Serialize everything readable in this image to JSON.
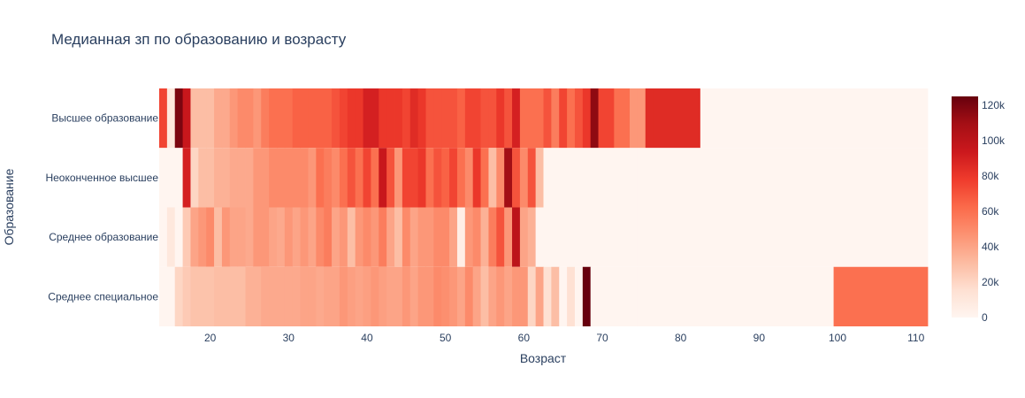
{
  "chart_data": {
    "type": "heatmap",
    "title": "Медианная зп по образованию и возрасту",
    "xlabel": "Возраст",
    "ylabel": "Образование",
    "xlim": [
      13.5,
      111.5
    ],
    "x_ticks": [
      "20",
      "30",
      "40",
      "50",
      "60",
      "70",
      "80",
      "90",
      "100",
      "110"
    ],
    "colorbar": {
      "colorscale": "Reds",
      "range": [
        0,
        125000
      ],
      "tick_values": [
        0,
        20000,
        40000,
        60000,
        80000,
        100000,
        120000
      ],
      "tick_labels": [
        "0",
        "20k",
        "40k",
        "60k",
        "80k",
        "100k",
        "120k"
      ]
    },
    "colors": {
      "scale": [
        "#fff5f0",
        "#fee0d2",
        "#fcbba1",
        "#fc9272",
        "#fb6a4a",
        "#ef3b2c",
        "#cb181d",
        "#a50f15",
        "#67000d"
      ]
    },
    "x": [
      14,
      15,
      16,
      17,
      18,
      19,
      20,
      21,
      22,
      23,
      24,
      25,
      26,
      27,
      28,
      29,
      30,
      31,
      32,
      33,
      34,
      35,
      36,
      37,
      38,
      39,
      40,
      41,
      42,
      43,
      44,
      45,
      46,
      47,
      48,
      49,
      50,
      51,
      52,
      53,
      54,
      55,
      56,
      57,
      58,
      59,
      60,
      61,
      62,
      63,
      64,
      65,
      66,
      67,
      68,
      69,
      70,
      71,
      72,
      73,
      74,
      75,
      76,
      77,
      88,
      111
    ],
    "categories": [
      "Высшее образование",
      "Неоконченное высшее",
      "Среднее образование",
      "Среднее специальное"
    ],
    "series": [
      {
        "name": "Высшее образование",
        "values": [
          75000,
          10000,
          120000,
          95000,
          30000,
          30000,
          30000,
          38000,
          38000,
          45000,
          50000,
          50000,
          45000,
          55000,
          60000,
          60000,
          60000,
          65000,
          65000,
          65000,
          65000,
          65000,
          70000,
          75000,
          80000,
          80000,
          90000,
          90000,
          80000,
          80000,
          80000,
          75000,
          85000,
          80000,
          70000,
          70000,
          70000,
          70000,
          65000,
          75000,
          75000,
          70000,
          70000,
          80000,
          70000,
          90000,
          60000,
          60000,
          60000,
          70000,
          55000,
          75000,
          60000,
          70000,
          80000,
          115000,
          75000,
          75000,
          60000,
          60000,
          45000,
          45000,
          85000,
          85000,
          0,
          0
        ]
      },
      {
        "name": "Неоконченное высшее",
        "values": [
          0,
          0,
          0,
          90000,
          20000,
          30000,
          30000,
          35000,
          35000,
          38000,
          38000,
          38000,
          45000,
          45000,
          50000,
          50000,
          50000,
          50000,
          50000,
          45000,
          60000,
          55000,
          50000,
          60000,
          70000,
          60000,
          75000,
          60000,
          95000,
          70000,
          45000,
          75000,
          75000,
          80000,
          60000,
          70000,
          65000,
          75000,
          60000,
          50000,
          80000,
          60000,
          30000,
          50000,
          110000,
          70000,
          50000,
          70000,
          30000,
          0,
          0,
          0,
          0,
          0,
          0,
          0,
          0,
          0,
          0,
          0,
          0,
          0,
          0,
          0,
          0,
          0
        ]
      },
      {
        "name": "Среднее образование",
        "values": [
          0,
          10000,
          0,
          25000,
          40000,
          45000,
          50000,
          30000,
          45000,
          40000,
          40000,
          38000,
          45000,
          45000,
          40000,
          38000,
          45000,
          40000,
          45000,
          40000,
          50000,
          55000,
          40000,
          45000,
          30000,
          45000,
          50000,
          45000,
          55000,
          40000,
          30000,
          50000,
          40000,
          45000,
          45000,
          50000,
          50000,
          40000,
          5000,
          45000,
          50000,
          35000,
          55000,
          70000,
          45000,
          100000,
          40000,
          35000,
          0,
          0,
          0,
          0,
          0,
          0,
          0,
          0,
          0,
          0,
          0,
          0,
          0,
          0,
          0,
          0,
          0,
          0
        ]
      },
      {
        "name": "Среднее специальное",
        "values": [
          0,
          0,
          20000,
          25000,
          28000,
          28000,
          28000,
          30000,
          30000,
          30000,
          30000,
          35000,
          35000,
          38000,
          38000,
          38000,
          38000,
          38000,
          40000,
          40000,
          38000,
          40000,
          40000,
          45000,
          42000,
          40000,
          42000,
          45000,
          42000,
          40000,
          40000,
          45000,
          40000,
          45000,
          45000,
          50000,
          48000,
          45000,
          40000,
          50000,
          40000,
          30000,
          40000,
          45000,
          40000,
          45000,
          45000,
          20000,
          40000,
          15000,
          30000,
          0,
          15000,
          0,
          125000,
          0,
          0,
          0,
          0,
          0,
          0,
          0,
          0,
          0,
          0,
          60000
        ]
      }
    ]
  }
}
